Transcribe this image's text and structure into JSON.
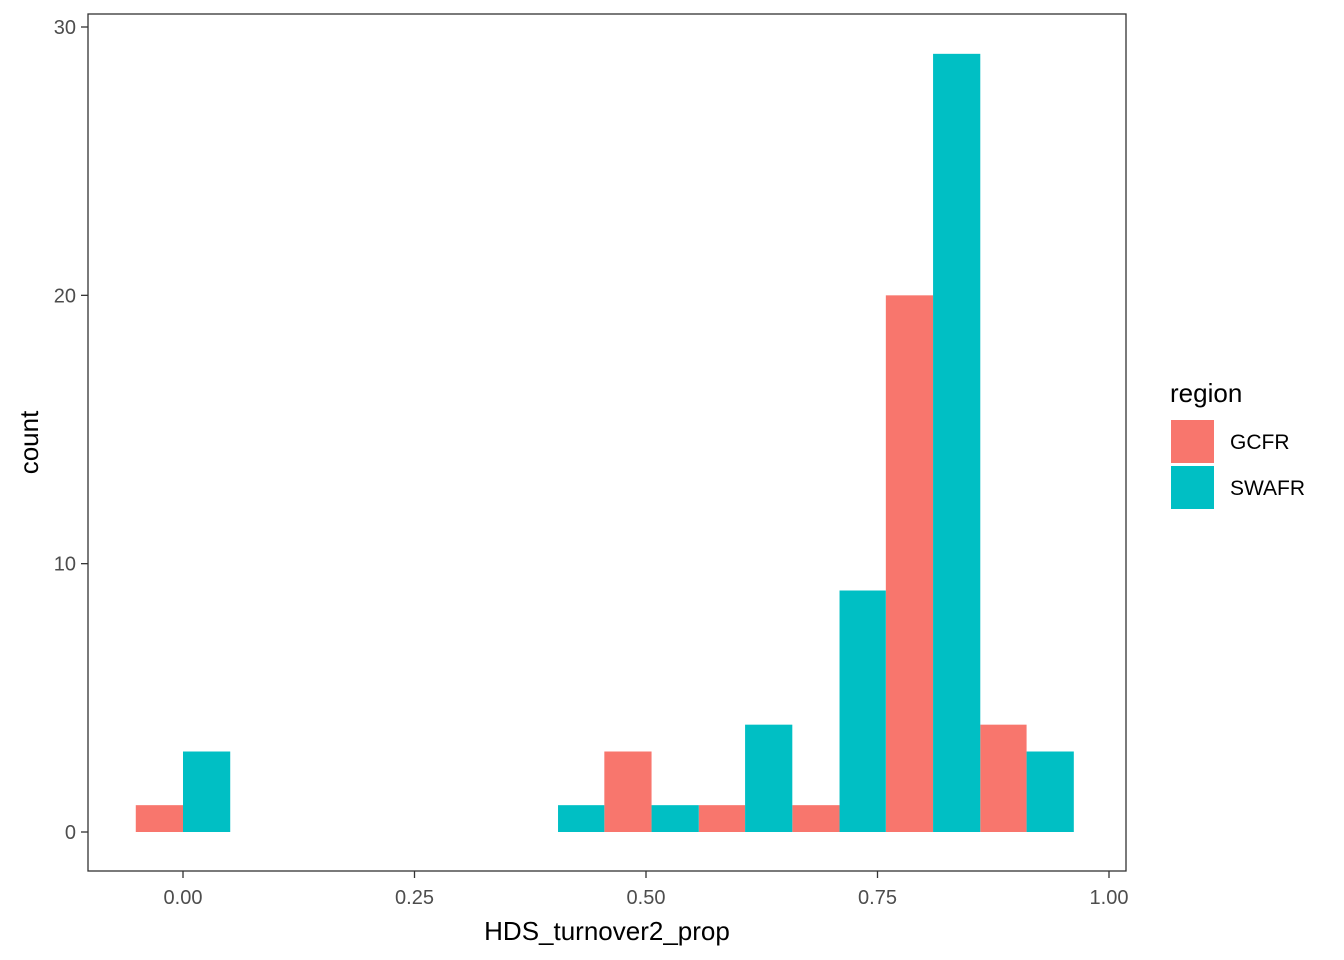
{
  "chart_data": {
    "type": "bar",
    "subtype": "histogram",
    "title": "",
    "xlabel": "HDS_turnover2_prop",
    "ylabel": "count",
    "xlim": [
      -0.1,
      1.0
    ],
    "ylim": [
      -1.4,
      30.5
    ],
    "x_ticks": [
      {
        "value": 0.0,
        "label": "0.00"
      },
      {
        "value": 0.25,
        "label": "0.25"
      },
      {
        "value": 0.5,
        "label": "0.50"
      },
      {
        "value": 0.75,
        "label": "0.75"
      },
      {
        "value": 1.0,
        "label": "1.00"
      }
    ],
    "y_ticks": [
      {
        "value": 0,
        "label": "0"
      },
      {
        "value": 10,
        "label": "10"
      },
      {
        "value": 20,
        "label": "20"
      },
      {
        "value": 30,
        "label": "30"
      }
    ],
    "grid": false,
    "legend_position": "right",
    "legend": {
      "title": "region",
      "entries": [
        {
          "label": "GCFR",
          "color": "#F8766D"
        },
        {
          "label": "SWAFR",
          "color": "#00BFC4"
        }
      ]
    },
    "position": "dodge",
    "series": [
      {
        "name": "GCFR",
        "color": "#F8766D",
        "bars": [
          {
            "x_start": -0.051,
            "x_end": 0.0,
            "value": 1
          },
          {
            "x_start": 0.455,
            "x_end": 0.506,
            "value": 3
          },
          {
            "x_start": 0.557,
            "x_end": 0.607,
            "value": 1
          },
          {
            "x_start": 0.658,
            "x_end": 0.709,
            "value": 1
          },
          {
            "x_start": 0.759,
            "x_end": 0.81,
            "value": 20
          },
          {
            "x_start": 0.861,
            "x_end": 0.911,
            "value": 4
          }
        ]
      },
      {
        "name": "SWAFR",
        "color": "#00BFC4",
        "bars": [
          {
            "x_start": 0.0,
            "x_end": 0.051,
            "value": 3
          },
          {
            "x_start": 0.405,
            "x_end": 0.455,
            "value": 1
          },
          {
            "x_start": 0.506,
            "x_end": 0.557,
            "value": 1
          },
          {
            "x_start": 0.607,
            "x_end": 0.658,
            "value": 4
          },
          {
            "x_start": 0.709,
            "x_end": 0.759,
            "value": 9
          },
          {
            "x_start": 0.81,
            "x_end": 0.861,
            "value": 29
          },
          {
            "x_start": 0.911,
            "x_end": 0.962,
            "value": 3
          }
        ]
      }
    ]
  }
}
